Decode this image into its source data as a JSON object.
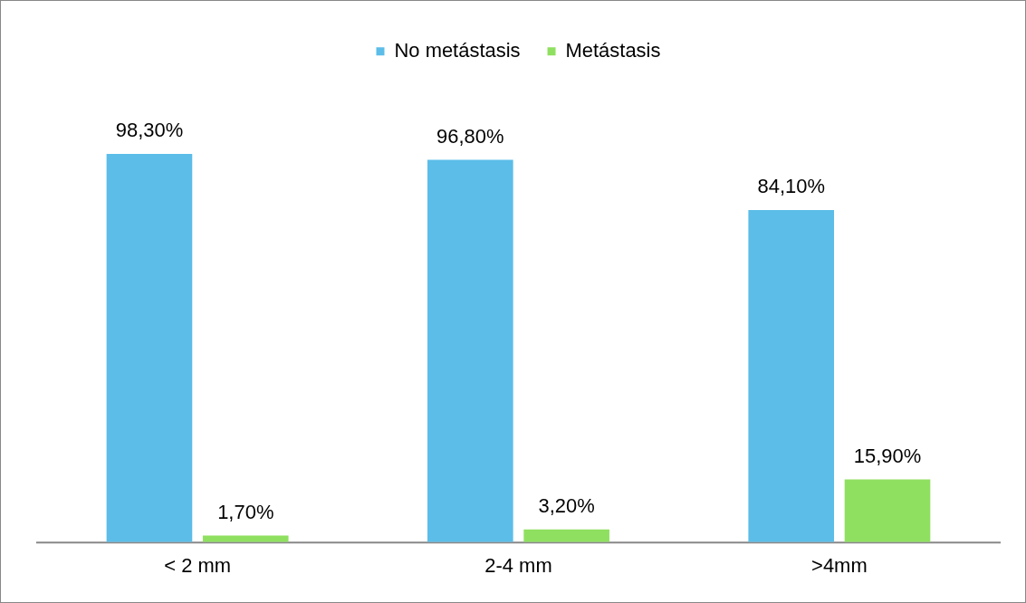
{
  "chart_data": {
    "type": "bar",
    "categories": [
      "< 2 mm",
      "2-4 mm",
      ">4mm"
    ],
    "series": [
      {
        "name": "No metástasis",
        "color": "#5bbde8",
        "values": [
          98.3,
          96.8,
          84.1
        ],
        "value_labels": [
          "98,30%",
          "96,80%",
          "84,10%"
        ]
      },
      {
        "name": "Metástasis",
        "color": "#8fe060",
        "values": [
          1.7,
          3.2,
          15.9
        ],
        "value_labels": [
          "1,70%",
          "3,20%",
          "15,90%"
        ]
      }
    ],
    "legend": "top",
    "grid": false
  }
}
